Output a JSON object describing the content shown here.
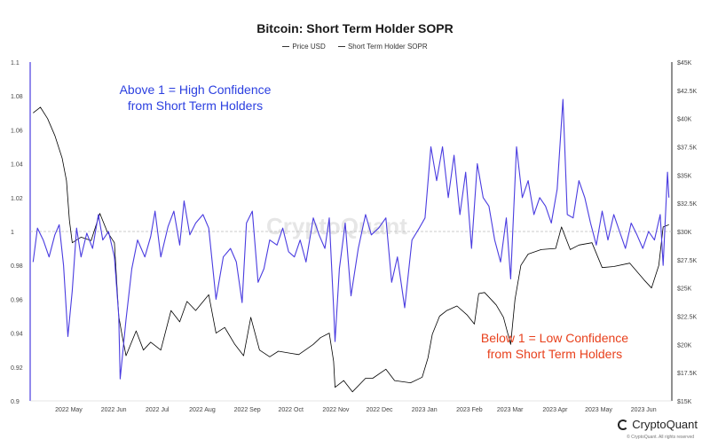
{
  "chart_data": {
    "type": "line",
    "title": "Bitcoin: Short Term Holder SOPR",
    "legend": {
      "placement": "top-center",
      "entries": [
        "Price USD",
        "Short Term Holder SOPR"
      ]
    },
    "x_ticks": [
      "2022 May",
      "2022 Jun",
      "2022 Jul",
      "2022 Aug",
      "2022 Sep",
      "2022 Oct",
      "2022 Nov",
      "2022 Dec",
      "2023 Jan",
      "2023 Feb",
      "2023 Mar",
      "2023 Apr",
      "2023 May",
      "2023 Jun"
    ],
    "y_left_ticks": [
      "0.9",
      "0.92",
      "0.94",
      "0.96",
      "0.98",
      "1",
      "1.02",
      "1.04",
      "1.06",
      "1.08",
      "1.1"
    ],
    "y_left_range": [
      0.9,
      1.1
    ],
    "y_right_ticks": [
      "$15K",
      "$17.5K",
      "$20K",
      "$22.5K",
      "$25K",
      "$27.5K",
      "$30K",
      "$32.5K",
      "$35K",
      "$37.5K",
      "$40K",
      "$42.5K",
      "$45K"
    ],
    "y_right_range": [
      15000,
      45000
    ],
    "reference_line": 1,
    "grid": false,
    "series": [
      {
        "name": "Price USD",
        "axis": "right",
        "color": "#000000",
        "points": [
          [
            "2022-04-15",
            40500
          ],
          [
            "2022-04-20",
            41000
          ],
          [
            "2022-04-25",
            40000
          ],
          [
            "2022-04-30",
            38500
          ],
          [
            "2022-05-05",
            36500
          ],
          [
            "2022-05-08",
            34500
          ],
          [
            "2022-05-10",
            31000
          ],
          [
            "2022-05-12",
            29000
          ],
          [
            "2022-05-18",
            29500
          ],
          [
            "2022-05-25",
            29200
          ],
          [
            "2022-05-31",
            31600
          ],
          [
            "2022-06-05",
            30000
          ],
          [
            "2022-06-10",
            29000
          ],
          [
            "2022-06-13",
            22500
          ],
          [
            "2022-06-15",
            21000
          ],
          [
            "2022-06-18",
            19000
          ],
          [
            "2022-06-25",
            21200
          ],
          [
            "2022-06-30",
            19500
          ],
          [
            "2022-07-05",
            20200
          ],
          [
            "2022-07-12",
            19500
          ],
          [
            "2022-07-19",
            23000
          ],
          [
            "2022-07-25",
            22000
          ],
          [
            "2022-07-30",
            23800
          ],
          [
            "2022-08-05",
            23000
          ],
          [
            "2022-08-14",
            24400
          ],
          [
            "2022-08-19",
            21000
          ],
          [
            "2022-08-25",
            21500
          ],
          [
            "2022-09-01",
            20000
          ],
          [
            "2022-09-07",
            19000
          ],
          [
            "2022-09-12",
            22400
          ],
          [
            "2022-09-18",
            19500
          ],
          [
            "2022-09-25",
            18900
          ],
          [
            "2022-10-01",
            19400
          ],
          [
            "2022-10-10",
            19200
          ],
          [
            "2022-10-15",
            19100
          ],
          [
            "2022-10-25",
            20000
          ],
          [
            "2022-10-30",
            20600
          ],
          [
            "2022-11-05",
            21000
          ],
          [
            "2022-11-08",
            18500
          ],
          [
            "2022-11-09",
            16200
          ],
          [
            "2022-11-15",
            16800
          ],
          [
            "2022-11-21",
            15800
          ],
          [
            "2022-11-30",
            17000
          ],
          [
            "2022-12-05",
            17000
          ],
          [
            "2022-12-14",
            17800
          ],
          [
            "2022-12-20",
            16800
          ],
          [
            "2022-12-31",
            16600
          ],
          [
            "2023-01-08",
            17100
          ],
          [
            "2023-01-12",
            18800
          ],
          [
            "2023-01-15",
            20900
          ],
          [
            "2023-01-20",
            22500
          ],
          [
            "2023-01-25",
            23000
          ],
          [
            "2023-02-01",
            23400
          ],
          [
            "2023-02-08",
            22600
          ],
          [
            "2023-02-13",
            21800
          ],
          [
            "2023-02-16",
            24500
          ],
          [
            "2023-02-20",
            24600
          ],
          [
            "2023-02-28",
            23500
          ],
          [
            "2023-03-05",
            22400
          ],
          [
            "2023-03-10",
            20000
          ],
          [
            "2023-03-13",
            24000
          ],
          [
            "2023-03-17",
            27000
          ],
          [
            "2023-03-22",
            28000
          ],
          [
            "2023-03-31",
            28400
          ],
          [
            "2023-04-10",
            28500
          ],
          [
            "2023-04-14",
            30400
          ],
          [
            "2023-04-20",
            28400
          ],
          [
            "2023-04-26",
            28800
          ],
          [
            "2023-05-05",
            29000
          ],
          [
            "2023-05-12",
            26800
          ],
          [
            "2023-05-20",
            26900
          ],
          [
            "2023-05-31",
            27200
          ],
          [
            "2023-06-10",
            25700
          ],
          [
            "2023-06-15",
            25000
          ],
          [
            "2023-06-20",
            27000
          ],
          [
            "2023-06-23",
            30400
          ],
          [
            "2023-06-27",
            30600
          ]
        ]
      },
      {
        "name": "Short Term Holder SOPR",
        "axis": "left",
        "color": "#4a3ce0",
        "points": [
          [
            "2022-04-15",
            0.982
          ],
          [
            "2022-04-18",
            1.002
          ],
          [
            "2022-04-22",
            0.995
          ],
          [
            "2022-04-26",
            0.985
          ],
          [
            "2022-04-30",
            0.998
          ],
          [
            "2022-05-03",
            1.004
          ],
          [
            "2022-05-06",
            0.98
          ],
          [
            "2022-05-09",
            0.938
          ],
          [
            "2022-05-12",
            0.965
          ],
          [
            "2022-05-15",
            1.002
          ],
          [
            "2022-05-18",
            0.985
          ],
          [
            "2022-05-22",
            0.999
          ],
          [
            "2022-05-26",
            0.99
          ],
          [
            "2022-05-30",
            1.01
          ],
          [
            "2022-06-02",
            0.995
          ],
          [
            "2022-06-06",
            1.0
          ],
          [
            "2022-06-10",
            0.985
          ],
          [
            "2022-06-13",
            0.95
          ],
          [
            "2022-06-14",
            0.913
          ],
          [
            "2022-06-18",
            0.948
          ],
          [
            "2022-06-22",
            0.978
          ],
          [
            "2022-06-26",
            0.995
          ],
          [
            "2022-07-01",
            0.985
          ],
          [
            "2022-07-05",
            0.997
          ],
          [
            "2022-07-08",
            1.012
          ],
          [
            "2022-07-12",
            0.985
          ],
          [
            "2022-07-17",
            1.003
          ],
          [
            "2022-07-21",
            1.012
          ],
          [
            "2022-07-25",
            0.992
          ],
          [
            "2022-07-28",
            1.018
          ],
          [
            "2022-08-01",
            0.998
          ],
          [
            "2022-08-05",
            1.005
          ],
          [
            "2022-08-10",
            1.01
          ],
          [
            "2022-08-14",
            1.002
          ],
          [
            "2022-08-19",
            0.96
          ],
          [
            "2022-08-24",
            0.985
          ],
          [
            "2022-08-29",
            0.99
          ],
          [
            "2022-09-02",
            0.982
          ],
          [
            "2022-09-06",
            0.958
          ],
          [
            "2022-09-09",
            1.005
          ],
          [
            "2022-09-13",
            1.012
          ],
          [
            "2022-09-17",
            0.97
          ],
          [
            "2022-09-21",
            0.978
          ],
          [
            "2022-09-25",
            0.995
          ],
          [
            "2022-09-30",
            0.992
          ],
          [
            "2022-10-04",
            1.002
          ],
          [
            "2022-10-08",
            0.988
          ],
          [
            "2022-10-12",
            0.985
          ],
          [
            "2022-10-16",
            0.995
          ],
          [
            "2022-10-20",
            0.982
          ],
          [
            "2022-10-25",
            1.008
          ],
          [
            "2022-10-29",
            0.998
          ],
          [
            "2022-11-02",
            0.99
          ],
          [
            "2022-11-05",
            1.008
          ],
          [
            "2022-11-08",
            0.955
          ],
          [
            "2022-11-09",
            0.935
          ],
          [
            "2022-11-12",
            0.978
          ],
          [
            "2022-11-16",
            1.005
          ],
          [
            "2022-11-20",
            0.962
          ],
          [
            "2022-11-25",
            0.99
          ],
          [
            "2022-11-30",
            1.01
          ],
          [
            "2022-12-04",
            0.998
          ],
          [
            "2022-12-09",
            1.002
          ],
          [
            "2022-12-14",
            1.008
          ],
          [
            "2022-12-18",
            0.97
          ],
          [
            "2022-12-22",
            0.985
          ],
          [
            "2022-12-27",
            0.955
          ],
          [
            "2023-01-01",
            0.995
          ],
          [
            "2023-01-06",
            1.002
          ],
          [
            "2023-01-10",
            1.008
          ],
          [
            "2023-01-14",
            1.05
          ],
          [
            "2023-01-18",
            1.03
          ],
          [
            "2023-01-22",
            1.05
          ],
          [
            "2023-01-26",
            1.02
          ],
          [
            "2023-01-30",
            1.045
          ],
          [
            "2023-02-03",
            1.01
          ],
          [
            "2023-02-07",
            1.035
          ],
          [
            "2023-02-11",
            0.99
          ],
          [
            "2023-02-15",
            1.04
          ],
          [
            "2023-02-19",
            1.02
          ],
          [
            "2023-02-23",
            1.015
          ],
          [
            "2023-02-27",
            0.995
          ],
          [
            "2023-03-03",
            0.982
          ],
          [
            "2023-03-07",
            1.008
          ],
          [
            "2023-03-10",
            0.972
          ],
          [
            "2023-03-14",
            1.05
          ],
          [
            "2023-03-18",
            1.02
          ],
          [
            "2023-03-22",
            1.03
          ],
          [
            "2023-03-26",
            1.01
          ],
          [
            "2023-03-30",
            1.02
          ],
          [
            "2023-04-03",
            1.015
          ],
          [
            "2023-04-07",
            1.005
          ],
          [
            "2023-04-11",
            1.025
          ],
          [
            "2023-04-15",
            1.078
          ],
          [
            "2023-04-18",
            1.01
          ],
          [
            "2023-04-22",
            1.008
          ],
          [
            "2023-04-26",
            1.03
          ],
          [
            "2023-04-30",
            1.02
          ],
          [
            "2023-05-04",
            1.005
          ],
          [
            "2023-05-08",
            0.992
          ],
          [
            "2023-05-12",
            1.012
          ],
          [
            "2023-05-16",
            0.995
          ],
          [
            "2023-05-20",
            1.01
          ],
          [
            "2023-05-24",
            1.0
          ],
          [
            "2023-05-28",
            0.99
          ],
          [
            "2023-06-01",
            1.005
          ],
          [
            "2023-06-05",
            0.998
          ],
          [
            "2023-06-09",
            0.99
          ],
          [
            "2023-06-13",
            1.0
          ],
          [
            "2023-06-17",
            0.995
          ],
          [
            "2023-06-21",
            1.01
          ],
          [
            "2023-06-23",
            0.98
          ],
          [
            "2023-06-26",
            1.035
          ],
          [
            "2023-06-27",
            1.02
          ]
        ]
      }
    ],
    "annotations": [
      {
        "id": "above",
        "lines": [
          "Above 1 = High Confidence",
          "from Short Term Holders"
        ],
        "color": "#2b3fe0"
      },
      {
        "id": "below",
        "lines": [
          "Below 1 = Low Confidence",
          "from Short Term Holders"
        ],
        "color": "#e8401c"
      }
    ]
  },
  "watermark": "CryptoQuant",
  "brand": "CryptoQuant",
  "copyright": "© CryptoQuant. All rights reserved"
}
